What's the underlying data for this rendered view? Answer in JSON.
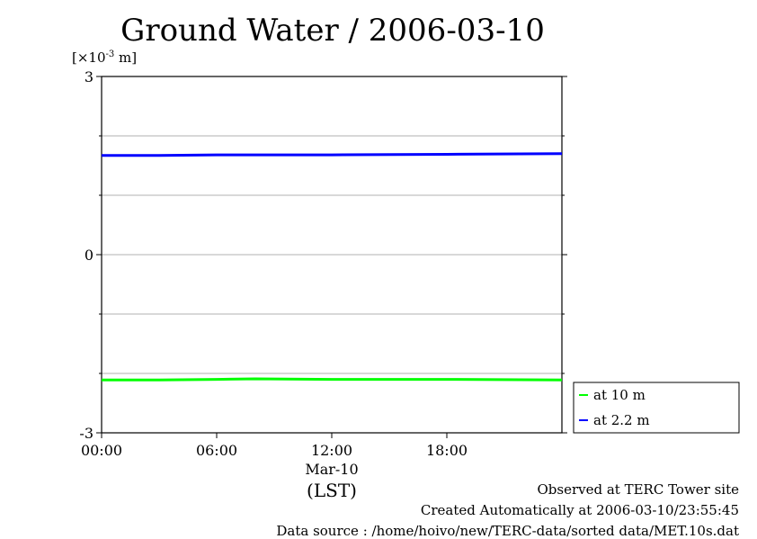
{
  "chart_data": {
    "type": "line",
    "title": "Ground Water / 2006-03-10",
    "ylabel": "[×10⁻³ m]",
    "ylabel_base": "[×10",
    "ylabel_exp": "-3",
    "ylabel_tail": " m]",
    "ylim": [
      -3,
      3
    ],
    "yticks": [
      3,
      0,
      -3
    ],
    "ytick_labels": [
      "3",
      "0",
      "-3"
    ],
    "ygrid": [
      2,
      1,
      -1,
      -2
    ],
    "xlim": [
      0,
      24
    ],
    "xticks": [
      0,
      6,
      12,
      18
    ],
    "xtick_labels": [
      "00:00",
      "06:00",
      "12:00",
      "18:00"
    ],
    "xdate": "Mar-10",
    "xunit": "(LST)",
    "legend_position": "right-bottom",
    "series": [
      {
        "name": "at 10 m",
        "color": "#00ff00",
        "x": [
          0,
          3,
          6,
          8,
          12,
          18,
          24
        ],
        "y": [
          -2.11,
          -2.11,
          -2.1,
          -2.09,
          -2.1,
          -2.1,
          -2.11
        ]
      },
      {
        "name": "at 2.2 m",
        "color": "#0000ff",
        "x": [
          0,
          3,
          6,
          12,
          18,
          24
        ],
        "y": [
          1.67,
          1.67,
          1.68,
          1.68,
          1.69,
          1.7
        ]
      }
    ]
  },
  "footer": {
    "line1": "Observed at TERC Tower site",
    "line2": "Created Automatically at 2006-03-10/23:55:45",
    "line3": "Data source : /home/hoivo/new/TERC-data/sorted  data/MET.10s.dat"
  }
}
